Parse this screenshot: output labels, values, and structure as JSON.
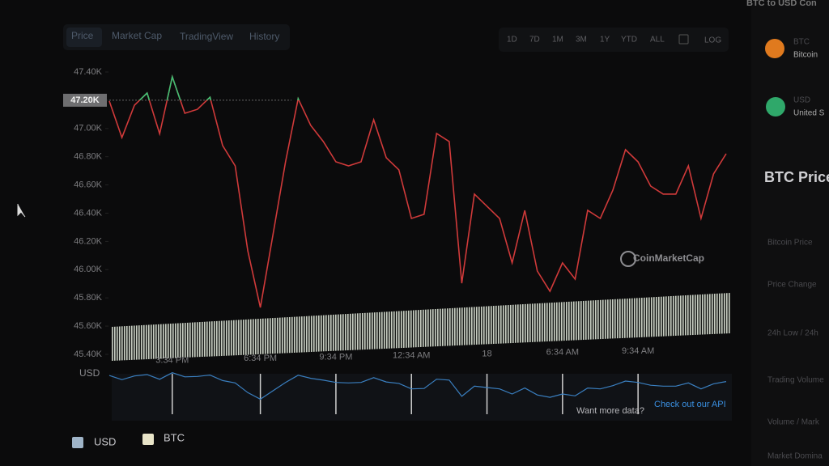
{
  "chart_data": {
    "type": "line",
    "categories": [
      null,
      null,
      null,
      null,
      null,
      "3:34 PM",
      null,
      null,
      null,
      null,
      null,
      null,
      "6:34 PM",
      null,
      null,
      null,
      null,
      null,
      "9:34 PM",
      null,
      null,
      null,
      null,
      null,
      "12:34 AM",
      null,
      null,
      null,
      null,
      null,
      "18",
      null,
      null,
      null,
      null,
      null,
      "6:34 AM",
      null,
      null,
      null,
      null,
      null,
      "9:34 AM",
      null,
      null,
      null,
      null,
      null,
      null,
      null
    ],
    "series": [
      {
        "color": "#d03a3a",
        "values": [
          47194,
          46936,
          47165,
          47251,
          46962,
          47366,
          47108,
          47136,
          47222,
          46879,
          46735,
          46133,
          45732,
          46248,
          46764,
          47211,
          47022,
          46907,
          46764,
          46735,
          46764,
          47062,
          46793,
          46707,
          46363,
          46392,
          46965,
          46908,
          45904,
          46535,
          46449,
          46363,
          46048,
          46420,
          45990,
          45847,
          46048,
          45933,
          46420,
          46363,
          46563,
          46850,
          46764,
          46592,
          46535,
          46535,
          46735,
          46363,
          46678,
          46821
        ]
      }
    ],
    "above_color": "#3fbf73",
    "ylim": [
      45400,
      47400
    ],
    "yticks": [
      {
        "value": 45400,
        "label": "45.40K"
      },
      {
        "value": 45600,
        "label": "45.60K"
      },
      {
        "value": 45800,
        "label": "45.80K"
      },
      {
        "value": 46000,
        "label": "46.00K"
      },
      {
        "value": 46200,
        "label": "46.20K"
      },
      {
        "value": 46400,
        "label": "46.40K"
      },
      {
        "value": 46600,
        "label": "46.60K"
      },
      {
        "value": 46800,
        "label": "46.80K"
      },
      {
        "value": 47000,
        "label": "47.00K"
      },
      {
        "value": 47200,
        "label": "47.20K"
      },
      {
        "value": 47400,
        "label": "47.40K"
      }
    ],
    "crosshair": {
      "value": 47200,
      "label": "47.20K"
    },
    "y_axis_label": "USD",
    "navigator_color": "#3a7fc0"
  },
  "ui": {
    "tabs": [
      "Price",
      "Market Cap",
      "TradingView",
      "History"
    ],
    "ranges": [
      "1D",
      "7D",
      "1M",
      "3M",
      "1Y",
      "YTD",
      "ALL",
      "LOG"
    ],
    "watermark": "CoinMarketCap",
    "more_data": "Want more data?",
    "api_link": "Check out our API",
    "legend": [
      "USD",
      "BTC"
    ],
    "panel_header": "BTC to USD Con",
    "coins": [
      {
        "symbol": "BTC",
        "name": "Bitcoin"
      },
      {
        "symbol": "USD",
        "name": "United S"
      }
    ],
    "price_title": "BTC Price",
    "stats": [
      "Bitcoin Price",
      "Price Change",
      "24h Low / 24h",
      "Trading Volume",
      "Volume / Mark",
      "Market Domina"
    ]
  }
}
